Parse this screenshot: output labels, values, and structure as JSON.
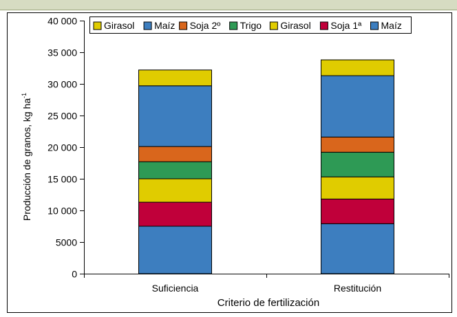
{
  "chart_data": {
    "type": "bar",
    "stacked": true,
    "categories": [
      "Suficiencia",
      "Restitución"
    ],
    "xlabel": "Criterio de fertilización",
    "ylabel": "Producción de granos, kg ha",
    "ylabel_sup": "-1",
    "ylim": [
      0,
      40000
    ],
    "yticks": [
      {
        "value": 0,
        "label": "0"
      },
      {
        "value": 5000,
        "label": "5000"
      },
      {
        "value": 10000,
        "label": "10 000"
      },
      {
        "value": 15000,
        "label": "15 000"
      },
      {
        "value": 20000,
        "label": "20 000"
      },
      {
        "value": 25000,
        "label": "25 000"
      },
      {
        "value": 30000,
        "label": "30 000"
      },
      {
        "value": 35000,
        "label": "35 000"
      },
      {
        "value": 40000,
        "label": "40 000"
      }
    ],
    "grid": false,
    "legend_position": "top",
    "series": [
      {
        "name": "Maíz",
        "color": "#3d7ebf",
        "values": [
          7500,
          7900
        ]
      },
      {
        "name": "Soja 1ª",
        "color": "#c0003a",
        "values": [
          3800,
          3900
        ]
      },
      {
        "name": "Girasol",
        "color": "#e0cc00",
        "values": [
          3700,
          3500
        ]
      },
      {
        "name": "Trigo",
        "color": "#2e9a55",
        "values": [
          2700,
          3900
        ]
      },
      {
        "name": "Soja 2º",
        "color": "#d9661c",
        "values": [
          2400,
          2400
        ]
      },
      {
        "name": "Maíz",
        "color": "#3d7ebf",
        "values": [
          9600,
          9700
        ]
      },
      {
        "name": "Girasol",
        "color": "#e0cc00",
        "values": [
          2500,
          2500
        ]
      }
    ],
    "legend_order": [
      6,
      5,
      4,
      3,
      2,
      1,
      0
    ]
  },
  "colors": {
    "top_band": "#d6dcc2",
    "border": "#000000"
  }
}
